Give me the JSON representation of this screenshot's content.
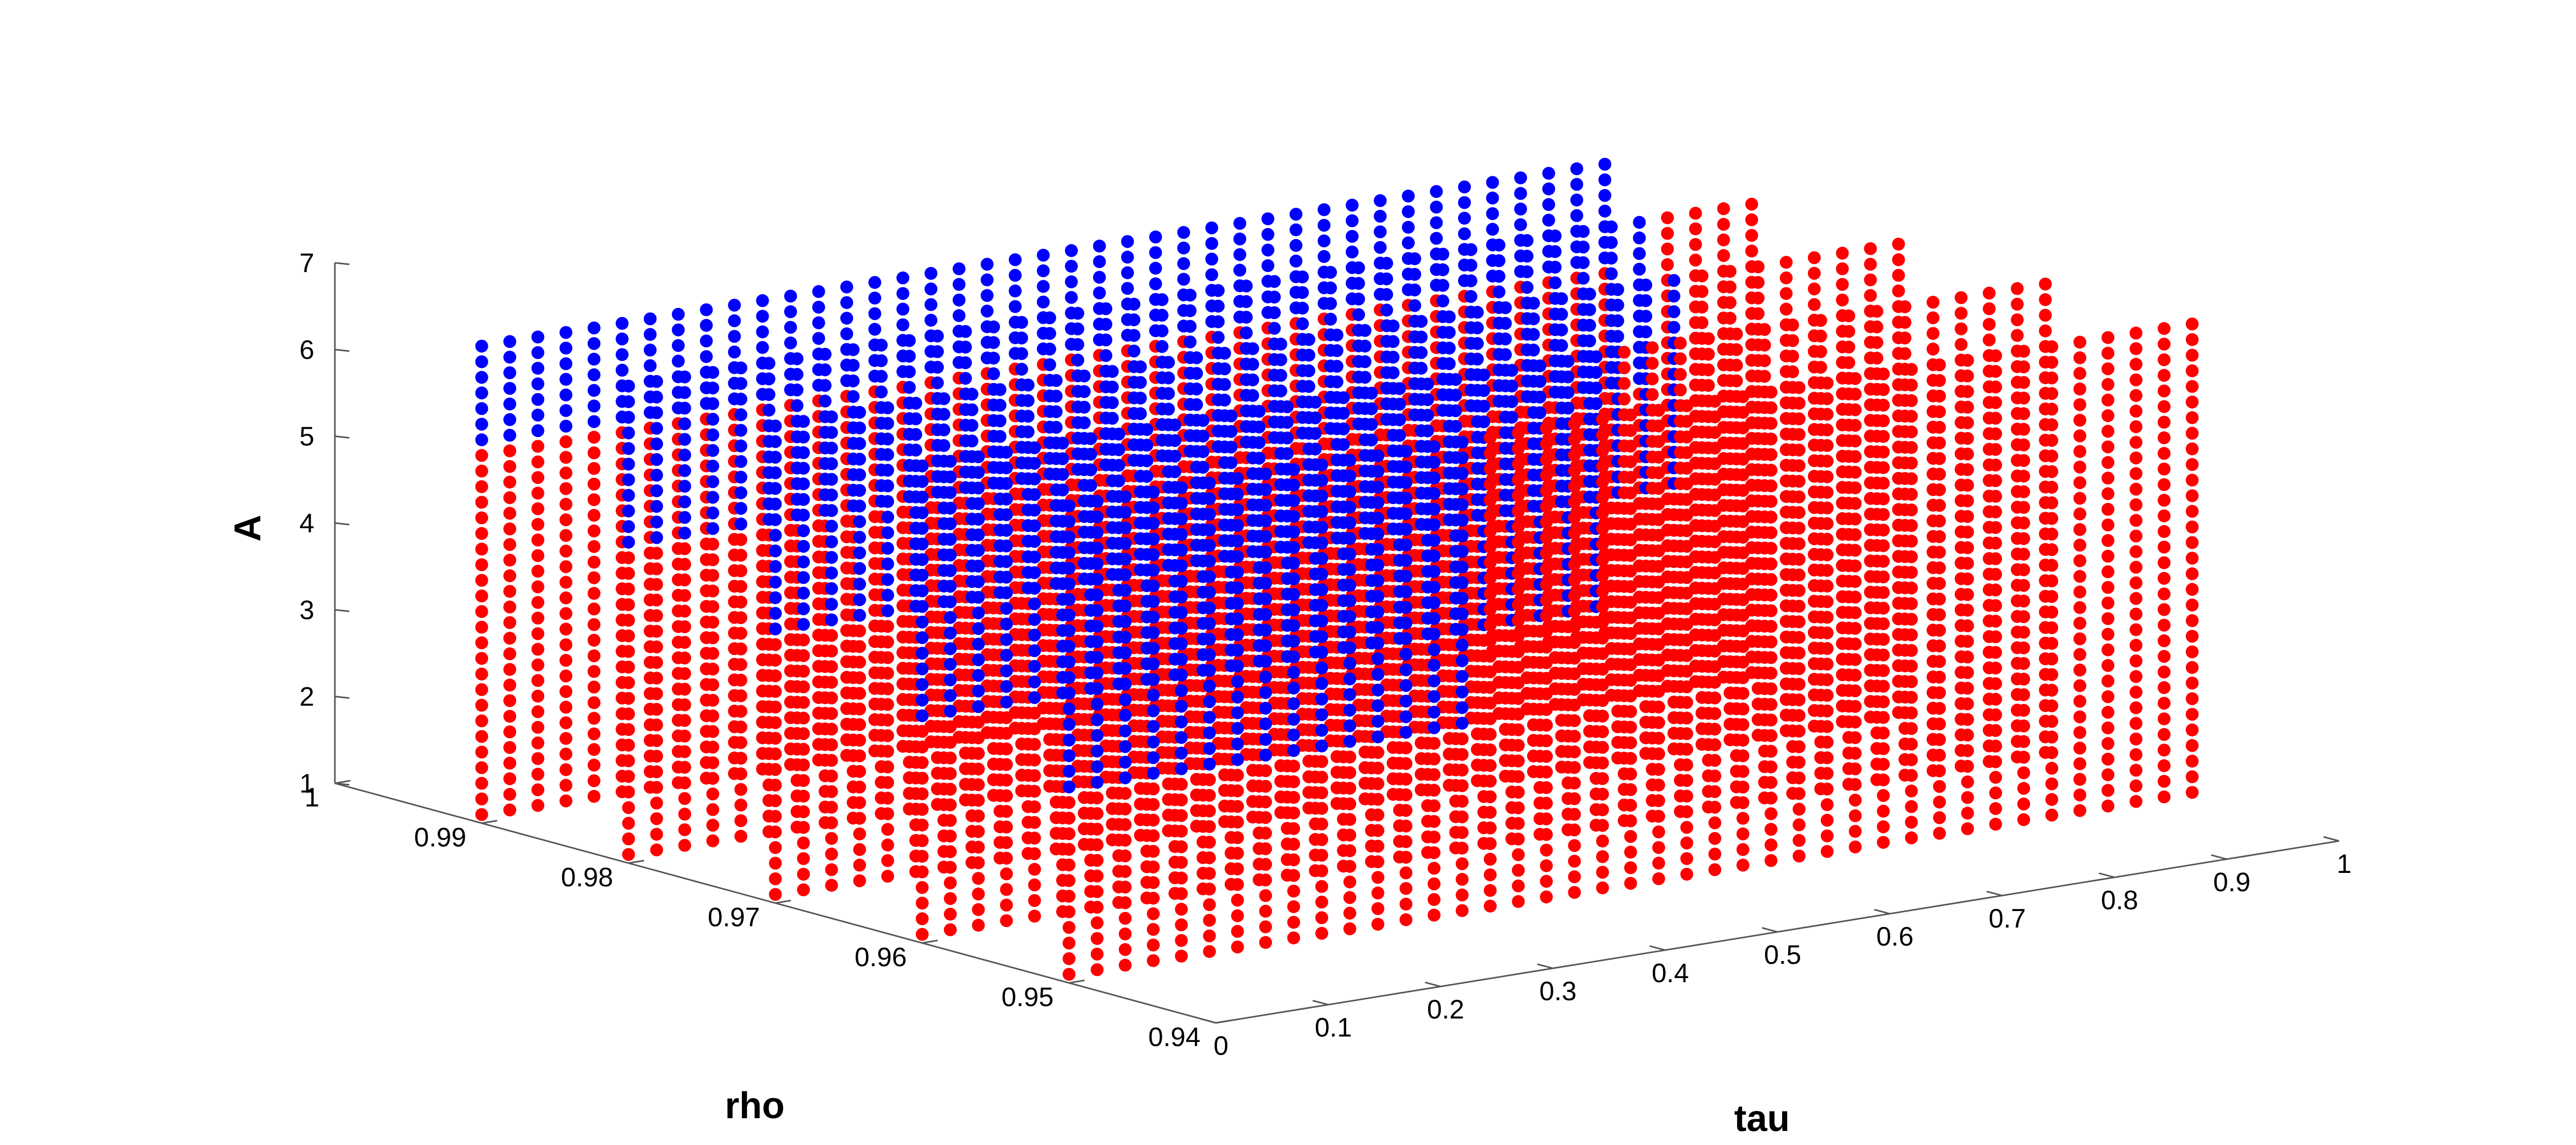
{
  "chart_data": {
    "type": "scatter",
    "projection": "3d",
    "xlabel": "tau",
    "ylabel": "rho",
    "zlabel": "A",
    "x_ticks": [
      "0",
      "0.1",
      "0.2",
      "0.3",
      "0.4",
      "0.5",
      "0.6",
      "0.7",
      "0.8",
      "0.9",
      "1"
    ],
    "y_ticks": [
      "0.94",
      "0.95",
      "0.96",
      "0.97",
      "0.98",
      "0.99",
      "1"
    ],
    "z_ticks": [
      "1",
      "2",
      "3",
      "4",
      "5",
      "6",
      "7"
    ],
    "xlim": [
      0,
      1
    ],
    "ylim": [
      0.94,
      1
    ],
    "zlim": [
      1,
      7
    ],
    "grid": false,
    "planes_rho": [
      0.99,
      0.98,
      0.97,
      0.96,
      0.95
    ],
    "tau_range": [
      0,
      1
    ],
    "tau_points": 41,
    "A_range": [
      1.1,
      6.5
    ],
    "A_points": 31,
    "series": [
      {
        "color": "#ff0000"
      },
      {
        "color": "#0000ff"
      }
    ],
    "blue_region": [
      {
        "rho": 0.99,
        "tau_max": 1.0,
        "A_min": 5.3
      },
      {
        "rho": 0.98,
        "tau_max": 0.9,
        "A_min": 4.6
      },
      {
        "rho": 0.97,
        "tau_max": 0.8,
        "A_min": 4.1
      },
      {
        "rho": 0.96,
        "tau_max": 0.6,
        "A_min": 3.6
      },
      {
        "rho": 0.95,
        "tau_max": 0.35,
        "A_min": 3.1
      }
    ]
  }
}
